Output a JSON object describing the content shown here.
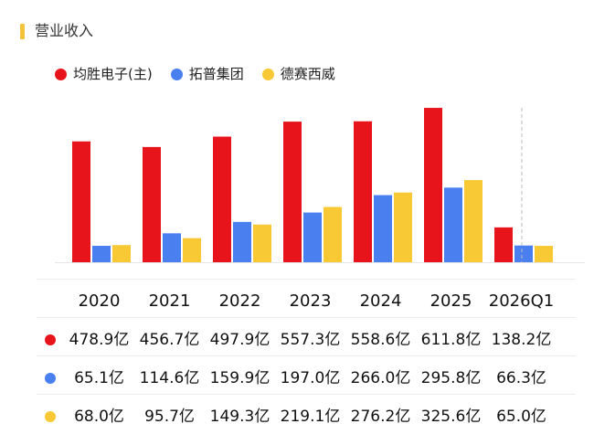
{
  "title": "营业收入",
  "colors": {
    "title_bar": "#f5c33b",
    "series_1": "#e8141c",
    "series_2": "#4a7ff0",
    "series_3": "#f8c935",
    "divider": "#bbbbbb"
  },
  "chart_data": {
    "type": "bar",
    "title": "营业收入",
    "categories": [
      "2020",
      "2021",
      "2022",
      "2023",
      "2024",
      "2025",
      "2026Q1"
    ],
    "series": [
      {
        "name": "均胜电子(主)",
        "color": "#e8141c",
        "values": [
          478.9,
          456.7,
          497.9,
          557.3,
          558.6,
          611.8,
          138.2
        ]
      },
      {
        "name": "拓普集团",
        "color": "#4a7ff0",
        "values": [
          65.1,
          114.6,
          159.9,
          197.0,
          266.0,
          295.8,
          66.3
        ]
      },
      {
        "name": "德赛西威",
        "color": "#f8c935",
        "values": [
          68.0,
          95.7,
          149.3,
          219.1,
          276.2,
          325.6,
          65.0
        ]
      }
    ],
    "unit": "亿",
    "ylim": [
      0,
      612
    ],
    "grid": false,
    "legend": "top-left",
    "dashed_separator_before": "2026Q1"
  },
  "table": {
    "header": [
      "2020",
      "2021",
      "2022",
      "2023",
      "2024",
      "2025",
      "2026Q1"
    ],
    "rows": [
      {
        "color": "#e8141c",
        "cells": [
          "478.9亿",
          "456.7亿",
          "497.9亿",
          "557.3亿",
          "558.6亿",
          "611.8亿",
          "138.2亿"
        ]
      },
      {
        "color": "#4a7ff0",
        "cells": [
          "65.1亿",
          "114.6亿",
          "159.9亿",
          "197.0亿",
          "266.0亿",
          "295.8亿",
          "66.3亿"
        ]
      },
      {
        "color": "#f8c935",
        "cells": [
          "68.0亿",
          "95.7亿",
          "149.3亿",
          "219.1亿",
          "276.2亿",
          "325.6亿",
          "65.0亿"
        ]
      }
    ]
  }
}
